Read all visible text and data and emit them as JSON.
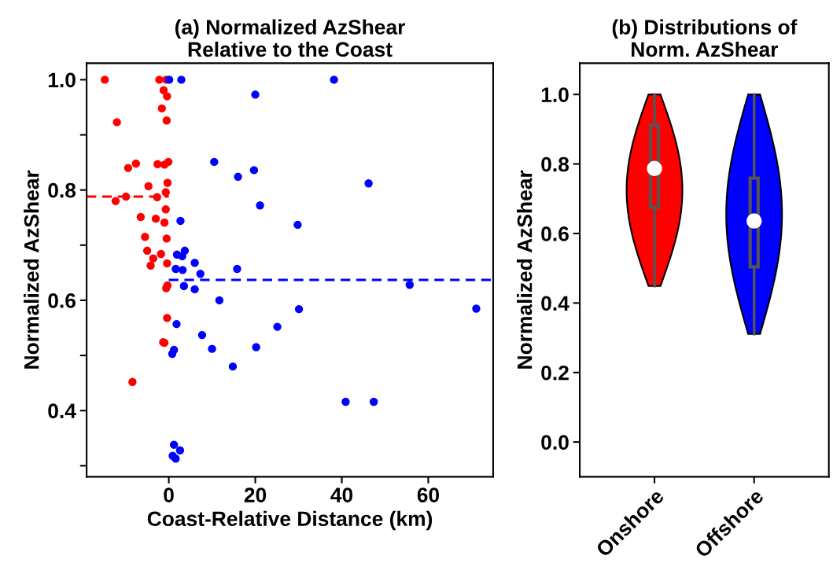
{
  "chart_data": [
    {
      "type": "scatter",
      "title": "(a) Normalized AzShear\nRelative to the Coast",
      "xlabel": "Coast-Relative Distance (km)",
      "ylabel": "Normalized AzShear",
      "xlim": [
        -19,
        75
      ],
      "xticks": [
        0,
        20,
        40,
        60
      ],
      "ylim": [
        0.28,
        1.03
      ],
      "yticks": [
        {
          "value": 0.3,
          "label": null
        },
        {
          "value": 0.4,
          "label": "0.4"
        },
        {
          "value": 0.5,
          "label": null
        },
        {
          "value": 0.6,
          "label": "0.6"
        },
        {
          "value": 0.7,
          "label": null
        },
        {
          "value": 0.8,
          "label": "0.8"
        },
        {
          "value": 0.9,
          "label": null
        },
        {
          "value": 1.0,
          "label": "1.0"
        }
      ],
      "marker": "circle",
      "grid": false,
      "legend": false,
      "series": [
        {
          "color": "#ff0000",
          "x": [
            -14.8,
            -2.2,
            -0.6,
            -1.2,
            -0.4,
            -1.6,
            -12.0,
            -0.5,
            -9.4,
            -7.6,
            -2.6,
            -1.0,
            -0.1,
            -4.7,
            -0.3,
            -0.7,
            -9.9,
            -2.7,
            -12.3,
            -0.7,
            -6.5,
            -3.0,
            -1.0,
            -5.5,
            -0.5,
            -5.0,
            -1.8,
            -3.6,
            -4.2,
            -0.4,
            -0.6,
            -0.3,
            -0.4,
            -1.3,
            -1.0,
            -8.4
          ],
          "values": [
            1.0,
            1.0,
            1.0,
            0.981,
            0.97,
            0.948,
            0.923,
            0.926,
            0.84,
            0.848,
            0.847,
            0.846,
            0.851,
            0.807,
            0.813,
            0.796,
            0.788,
            0.787,
            0.78,
            0.765,
            0.751,
            0.748,
            0.741,
            0.715,
            0.712,
            0.69,
            0.684,
            0.676,
            0.663,
            0.667,
            0.622,
            0.627,
            0.568,
            0.524,
            0.523,
            0.452
          ]
        },
        {
          "color": "#0000ff",
          "x": [
            0.1,
            2.9,
            38.2,
            20.0,
            10.5,
            16.0,
            19.7,
            46.2,
            21.1,
            2.7,
            29.8,
            3.7,
            1.9,
            3.1,
            6.0,
            1.6,
            3.2,
            15.8,
            7.3,
            3.5,
            6.0,
            11.7,
            30.1,
            25.1,
            1.8,
            7.7,
            10.0,
            20.2,
            1.2,
            0.8,
            14.8,
            40.9,
            47.4,
            1.2,
            2.6,
            0.9,
            1.6,
            55.7,
            71.1
          ],
          "values": [
            1.0,
            1.0,
            1.0,
            0.973,
            0.851,
            0.824,
            0.836,
            0.812,
            0.772,
            0.744,
            0.737,
            0.69,
            0.683,
            0.68,
            0.668,
            0.657,
            0.655,
            0.657,
            0.648,
            0.626,
            0.62,
            0.6,
            0.584,
            0.552,
            0.557,
            0.537,
            0.512,
            0.515,
            0.51,
            0.503,
            0.48,
            0.416,
            0.416,
            0.338,
            0.328,
            0.318,
            0.313,
            0.628,
            0.585
          ]
        },
        {
          "type": "line",
          "line_style": "dashed",
          "marker": "none",
          "color": "#ff0000",
          "x": [
            -19,
            0
          ],
          "values": [
            0.788,
            0.788
          ]
        },
        {
          "type": "line",
          "line_style": "dashed",
          "marker": "none",
          "color": "#0000ff",
          "x": [
            0,
            75
          ],
          "values": [
            0.637,
            0.637
          ]
        }
      ]
    },
    {
      "type": "box",
      "title": "(b) Distributions of\nNorm. AzShear",
      "ylabel": "Normalized AzShear",
      "categories": [
        "Onshore",
        "Offshore"
      ],
      "colors": [
        "#ff0000",
        "#0000ff"
      ],
      "ylim": [
        -0.1,
        1.09
      ],
      "yticks": [
        {
          "value": 0.0,
          "label": "0.0"
        },
        {
          "value": 0.2,
          "label": "0.2"
        },
        {
          "value": 0.4,
          "label": "0.4"
        },
        {
          "value": 0.6,
          "label": "0.6"
        },
        {
          "value": 0.8,
          "label": "0.8"
        },
        {
          "value": 1.0,
          "label": "1.0"
        }
      ],
      "grid": false,
      "legend": false,
      "boxes": [
        {
          "low": 0.449,
          "q1": 0.675,
          "median": 0.787,
          "q3": 0.912,
          "high": 1.0
        },
        {
          "low": 0.311,
          "q1": 0.504,
          "median": 0.636,
          "q3": 0.759,
          "high": 1.0
        }
      ]
    }
  ]
}
